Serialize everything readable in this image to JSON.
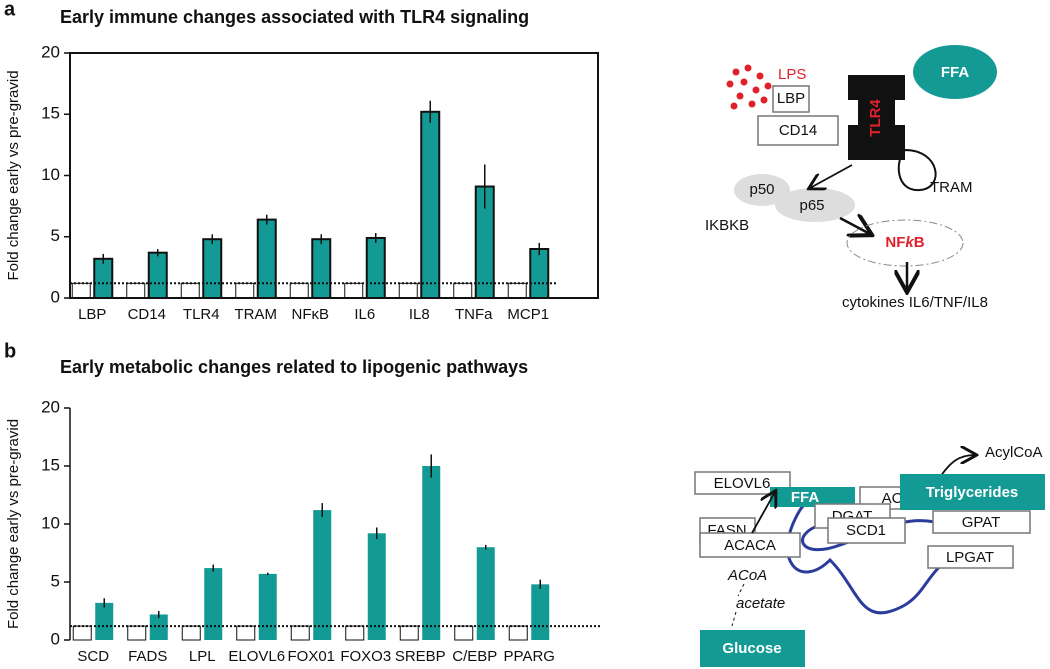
{
  "chart_data": [
    {
      "type": "bar",
      "panel": "a",
      "title": "Early immune changes associated with TLR4 signaling",
      "y_label": "Fold change early vs pre-gravid",
      "categories": [
        "LBP",
        "CD14",
        "TLR4",
        "TRAM",
        "NFκB",
        "IL6",
        "IL8",
        "TNFa",
        "MCP1"
      ],
      "series": [
        {
          "color": "#ffffff",
          "values": [
            1.2,
            1.2,
            1.2,
            1.2,
            1.2,
            1.2,
            1.2,
            1.2,
            1.2
          ]
        },
        {
          "color": "#149a94",
          "values": [
            3.2,
            3.7,
            4.8,
            6.4,
            4.8,
            4.9,
            15.2,
            9.1,
            4.0
          ],
          "errors": [
            0.4,
            0.3,
            0.4,
            0.4,
            0.4,
            0.4,
            0.9,
            1.8,
            0.5
          ]
        }
      ],
      "ylim": [
        0,
        20
      ],
      "yticks": [
        0,
        5,
        10,
        15,
        20
      ],
      "reference_line": 1.2,
      "frame": true,
      "bar_outline": true
    },
    {
      "type": "bar",
      "panel": "b",
      "title": "Early metabolic changes related to lipogenic pathways",
      "y_label": "Fold change early vs pre-gravid",
      "categories": [
        "SCD",
        "FADS",
        "LPL",
        "ELOVL6",
        "FOX01",
        "FOXO3",
        "SREBP",
        "C/EBP",
        "PPARG"
      ],
      "series": [
        {
          "color": "#ffffff",
          "values": [
            1.2,
            1.2,
            1.2,
            1.2,
            1.2,
            1.2,
            1.2,
            1.2,
            1.2
          ]
        },
        {
          "color": "#149a94",
          "values": [
            3.2,
            2.2,
            6.2,
            5.7,
            11.2,
            9.2,
            15.0,
            8.0,
            4.8
          ],
          "errors": [
            0.4,
            0.3,
            0.3,
            0.1,
            0.6,
            0.5,
            1.0,
            0.2,
            0.4
          ]
        }
      ],
      "ylim": [
        0,
        20
      ],
      "yticks": [
        0,
        5,
        10,
        15,
        20
      ],
      "reference_line": 1.2,
      "frame": false,
      "bar_outline": false
    }
  ],
  "diagram_a": {
    "lps": "LPS",
    "lbp": "LBP",
    "cd14": "CD14",
    "tlr4": "TLR4",
    "ffa": "FFA",
    "p50": "p50",
    "p65": "p65",
    "ikbkb": "IKBKB",
    "tram": "TRAM",
    "nfkb_pre": "NF",
    "nfkb_k": "k",
    "nfkb_post": "B",
    "cytokines": "cytokines IL6/TNF/IL8"
  },
  "diagram_b": {
    "elovl6": "ELOVL6",
    "ffa": "FFA",
    "acs": "ACS",
    "acylcoa": "AcylCoA",
    "dgat": "DGAT",
    "triglycerides": "Triglycerides",
    "fasn": "FASN",
    "scd1": "SCD1",
    "gpat": "GPAT",
    "acaca": "ACACA",
    "lpgat": "LPGAT",
    "acoa": "ACoA",
    "acetate": "acetate",
    "glucose": "Glucose"
  }
}
